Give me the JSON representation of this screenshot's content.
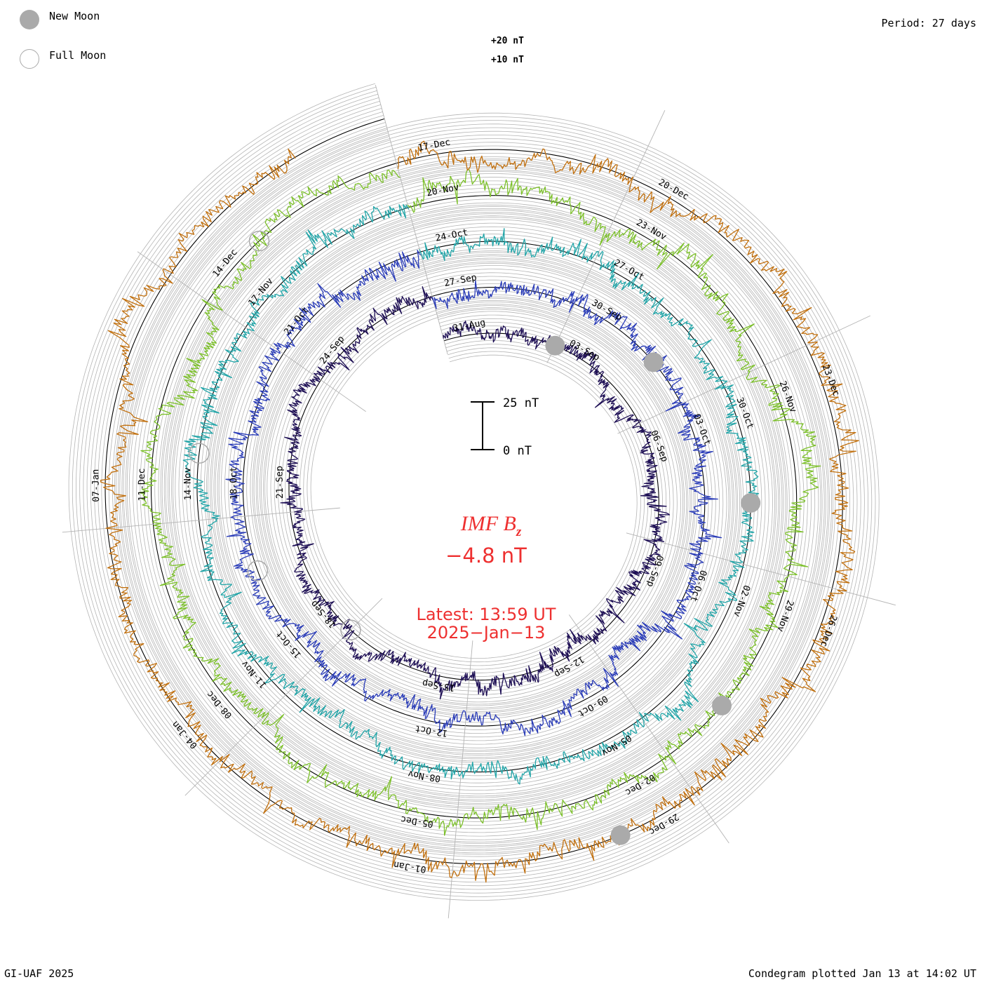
{
  "legend": {
    "new_moon": "New Moon",
    "full_moon": "Full Moon"
  },
  "period_label": "Period: 27 days",
  "footer_left": "GI-UAF 2025",
  "footer_right": "Condegram plotted Jan 13 at 14:02 UT",
  "colors": {
    "grid": "#b4b4b4",
    "axis": "#000000",
    "accent": "#ee3030",
    "moon": "#aaaaaa"
  },
  "chart_data": {
    "type": "line",
    "title": "IMF Bz",
    "title_main": "IMF B",
    "title_sub": "z",
    "current_value": "−4.8 nT",
    "latest_time": "Latest: 13:59 UT",
    "latest_date": "2025−Jan−13",
    "period_days": 27,
    "ring_labels": [
      "+20 nT",
      "+10 nT"
    ],
    "scale_bar": {
      "top_label": "25 nT",
      "bottom_label": "0 nT",
      "span_nT": 25
    },
    "date_labels": [
      [
        "31-Aug",
        "03-Sep",
        "06-Sep",
        "09-Sep",
        "12-Sep",
        "15-Sep",
        "18-Sep",
        "21-Sep",
        "24-Sep"
      ],
      [
        "27-Sep",
        "30-Sep",
        "03-Oct",
        "06-Oct",
        "09-Oct",
        "12-Oct",
        "15-Oct",
        "18-Oct",
        "21-Oct"
      ],
      [
        "24-Oct",
        "27-Oct",
        "30-Oct",
        "02-Nov",
        "05-Nov",
        "08-Nov",
        "11-Nov",
        "14-Nov",
        "17-Nov"
      ],
      [
        "20-Nov",
        "23-Nov",
        "26-Nov",
        "29-Nov",
        "02-Dec",
        "05-Dec",
        "08-Dec",
        "11-Dec",
        "14-Dec"
      ],
      [
        "17-Dec",
        "20-Dec",
        "23-Dec",
        "26-Dec",
        "29-Dec",
        "01-Jan",
        "04-Jan",
        "07-Jan"
      ]
    ],
    "series": [
      {
        "name": "2024-08-31 to 2024-09-26",
        "color": "#1e0f55",
        "amplitude_nT": 4.5
      },
      {
        "name": "2024-09-27 to 2024-10-23",
        "color": "#2a3cb8",
        "amplitude_nT": 5.0
      },
      {
        "name": "2024-10-24 to 2024-11-19",
        "color": "#22a5a8",
        "amplitude_nT": 5.0
      },
      {
        "name": "2024-11-20 to 2024-12-16",
        "color": "#7cc02a",
        "amplitude_nT": 5.0
      },
      {
        "name": "2024-12-17 to 2025-01-13",
        "color": "#c1700f",
        "amplitude_nT": 5.5
      }
    ],
    "new_moons": [
      "2024-09-03",
      "2024-10-02",
      "2024-11-01",
      "2024-12-01",
      "2024-12-30"
    ],
    "full_moons": [
      "2024-09-18",
      "2024-10-17",
      "2024-11-15",
      "2024-12-15"
    ]
  }
}
